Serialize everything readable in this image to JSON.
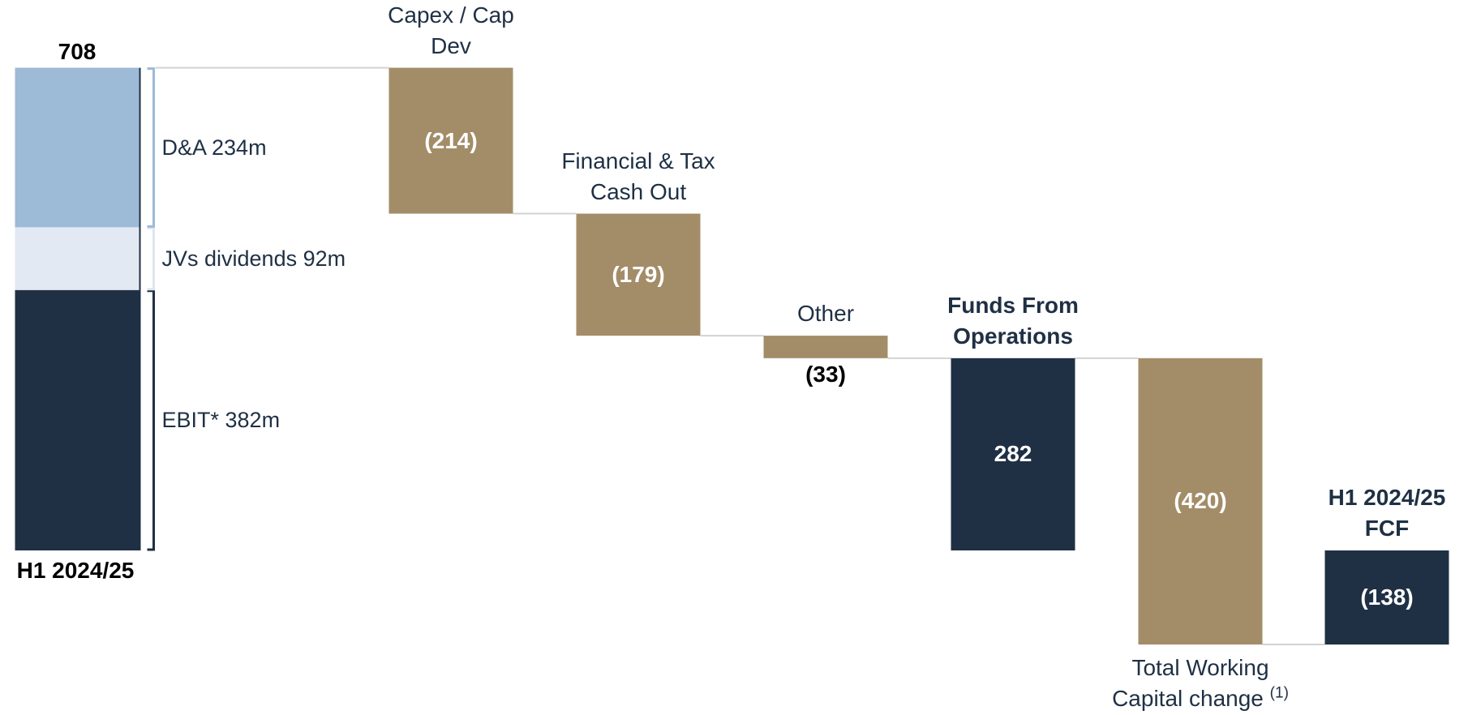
{
  "chart_data": {
    "type": "waterfall",
    "categories": [
      "H1 2024/25",
      "Capex / Cap Dev",
      "Financial & Tax Cash Out",
      "Other",
      "Funds From Operations",
      "Total Working Capital change",
      "H1 2024/25 FCF"
    ],
    "category_footnotes": [
      null,
      null,
      null,
      null,
      null,
      "(1)",
      null
    ],
    "values": [
      708,
      -214,
      -179,
      -33,
      282,
      -420,
      -138
    ],
    "value_labels": [
      "708",
      "(214)",
      "(179)",
      "(33)",
      "282",
      "(420)",
      "(138)"
    ],
    "totals": [
      true,
      false,
      false,
      false,
      true,
      false,
      true
    ],
    "label_position": [
      "below",
      "above",
      "above",
      "above",
      "above",
      "below",
      "above"
    ],
    "value_label_position": [
      "above",
      "inside",
      "inside",
      "below",
      "inside",
      "inside",
      "inside"
    ],
    "total_color": "#1f3044",
    "delta_color": "#a38d68",
    "breakdown": [
      {
        "name": "EBIT* 382m",
        "value": 382,
        "color": "#1f3044"
      },
      {
        "name": "JVs dividends 92m",
        "value": 92,
        "color": "#e3e9f3"
      },
      {
        "name": "D&A 234m",
        "value": 234,
        "color": "#9dbad6"
      }
    ]
  }
}
